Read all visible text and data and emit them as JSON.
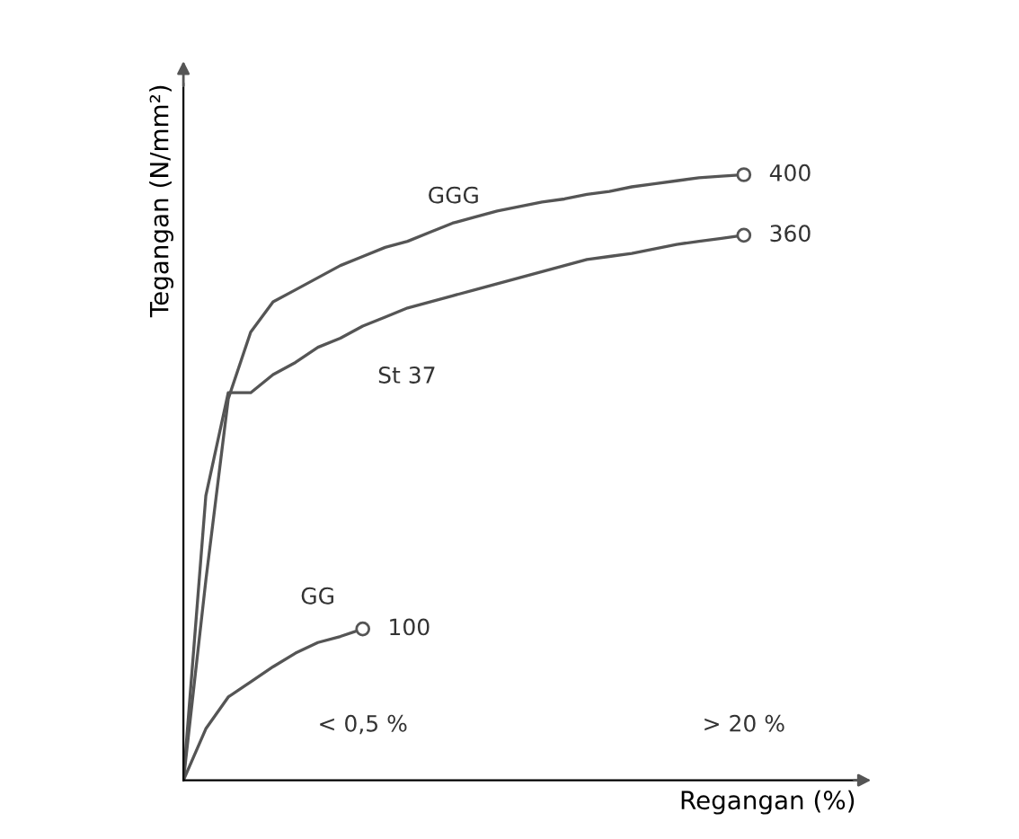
{
  "chart_data": {
    "type": "line",
    "xlabel": "Regangan (%)",
    "ylabel": "Tegangan (N/mm²)",
    "ylim": [
      0,
      460
    ],
    "categories": [
      null,
      null,
      null,
      null,
      null,
      null,
      null,
      null,
      null,
      null,
      null,
      null,
      null,
      null,
      null,
      null,
      null,
      null,
      null,
      null,
      null,
      null,
      null,
      null,
      null,
      null,
      null,
      null,
      null,
      null,
      null
    ],
    "series": [
      {
        "name": "GGG",
        "color": "#555555",
        "values": [
          0,
          132,
          252,
          296,
          316,
          324,
          332,
          340,
          346,
          352,
          356,
          362,
          368,
          372,
          376,
          379,
          382,
          384,
          387,
          389,
          392,
          394,
          396,
          398,
          399,
          400,
          null,
          null,
          null,
          null,
          null
        ],
        "value_labels": [
          null,
          null,
          null,
          null,
          null,
          null,
          null,
          null,
          null,
          null,
          null,
          null,
          null,
          null,
          null,
          null,
          null,
          null,
          null,
          null,
          null,
          null,
          null,
          null,
          null,
          "400",
          null,
          null,
          null,
          null,
          null
        ]
      },
      {
        "name": "St 37",
        "color": "#555555",
        "values": [
          0,
          188,
          256,
          256,
          268,
          276,
          286,
          292,
          300,
          306,
          312,
          316,
          320,
          324,
          328,
          332,
          336,
          340,
          344,
          346,
          348,
          351,
          354,
          356,
          358,
          360,
          null,
          null,
          null,
          null,
          null
        ],
        "value_labels": [
          null,
          null,
          null,
          null,
          null,
          null,
          null,
          null,
          null,
          null,
          null,
          null,
          null,
          null,
          null,
          null,
          null,
          null,
          null,
          null,
          null,
          null,
          null,
          null,
          null,
          "360",
          null,
          null,
          null,
          null,
          null
        ]
      },
      {
        "name": "GG",
        "color": "#555555",
        "values": [
          0,
          34,
          55,
          65,
          75,
          84,
          91,
          95,
          100,
          null,
          null,
          null,
          null,
          null,
          null,
          null,
          null,
          null,
          null,
          null,
          null,
          null,
          null,
          null,
          null,
          null,
          null,
          null,
          null,
          null,
          null
        ],
        "value_labels": [
          null,
          null,
          null,
          null,
          null,
          null,
          null,
          null,
          "100",
          null,
          null,
          null,
          null,
          null,
          null,
          null,
          null,
          null,
          null,
          null,
          null,
          null,
          null,
          null,
          null,
          null,
          null,
          null,
          null,
          null,
          null
        ]
      }
    ],
    "annotations": [
      "< 0,5 %",
      "> 20 %"
    ]
  }
}
